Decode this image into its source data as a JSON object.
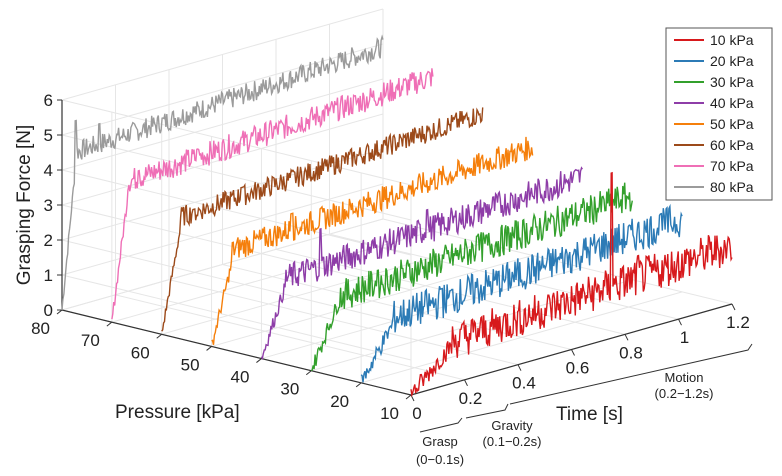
{
  "chart_data": {
    "type": "line",
    "projection": "3d-waterfall",
    "title": "",
    "xlabel": "Time [s]",
    "ylabel": "Pressure [kPa]",
    "zlabel": "Grasping Force [N]",
    "xlim": [
      0,
      1.2
    ],
    "ylim": [
      10,
      80
    ],
    "zlim": [
      0,
      6
    ],
    "x_ticks": [
      "0",
      "0.2",
      "0.4",
      "0.6",
      "0.8",
      "1",
      "1.2"
    ],
    "y_ticks": [
      "10",
      "20",
      "30",
      "40",
      "50",
      "60",
      "70",
      "80"
    ],
    "z_ticks": [
      "0",
      "1",
      "2",
      "3",
      "4",
      "5",
      "6"
    ],
    "grid": true,
    "legend_position": "top-right",
    "phases": [
      {
        "name": "Grasp",
        "range": "(0−0.1s)"
      },
      {
        "name": "Gravity",
        "range": "(0.1−0.2s)"
      },
      {
        "name": "Motion",
        "range": "(0.2−1.2s)"
      }
    ],
    "series": [
      {
        "name": "10 kPa",
        "pressure": 10,
        "color": "#d7191c",
        "level": 1.2,
        "grasp_end": 0.15,
        "noise": 0.55,
        "spikes": [
          [
            0.75,
            4.6
          ],
          [
            0.85,
            2.0
          ]
        ]
      },
      {
        "name": "20 kPa",
        "pressure": 20,
        "color": "#2c7bb6",
        "level": 1.6,
        "grasp_end": 0.12,
        "noise": 0.5,
        "spikes": [
          [
            0.3,
            2.0
          ],
          [
            1.12,
            2.2
          ]
        ]
      },
      {
        "name": "30 kPa",
        "pressure": 30,
        "color": "#33a02c",
        "level": 1.9,
        "grasp_end": 0.1,
        "noise": 0.45,
        "spikes": [
          [
            0.25,
            2.3
          ],
          [
            0.62,
            2.4
          ]
        ]
      },
      {
        "name": "40 kPa",
        "pressure": 40,
        "color": "#8e3da8",
        "level": 2.1,
        "grasp_end": 0.09,
        "noise": 0.4,
        "spikes": [
          [
            0.22,
            3.2
          ],
          [
            0.62,
            2.8
          ]
        ]
      },
      {
        "name": "50 kPa",
        "pressure": 50,
        "color": "#f57f0b",
        "level": 2.6,
        "grasp_end": 0.08,
        "noise": 0.35,
        "spikes": [
          [
            0.08,
            2.8
          ],
          [
            0.3,
            3.1
          ]
        ]
      },
      {
        "name": "60 kPa",
        "pressure": 60,
        "color": "#9c4a1a",
        "level": 3.2,
        "grasp_end": 0.07,
        "noise": 0.3,
        "spikes": [
          [
            0.12,
            3.3
          ],
          [
            0.3,
            3.5
          ]
        ]
      },
      {
        "name": "70 kPa",
        "pressure": 70,
        "color": "#ef6fb6",
        "level": 3.9,
        "grasp_end": 0.06,
        "noise": 0.35,
        "spikes": [
          [
            0.1,
            4.1
          ],
          [
            0.32,
            4.2
          ]
        ]
      },
      {
        "name": "80 kPa",
        "pressure": 80,
        "color": "#9b9b9b",
        "level": 4.4,
        "grasp_end": 0.05,
        "noise": 0.3,
        "spikes": [
          [
            0.05,
            5.3
          ],
          [
            0.14,
            5.0
          ]
        ]
      }
    ]
  }
}
